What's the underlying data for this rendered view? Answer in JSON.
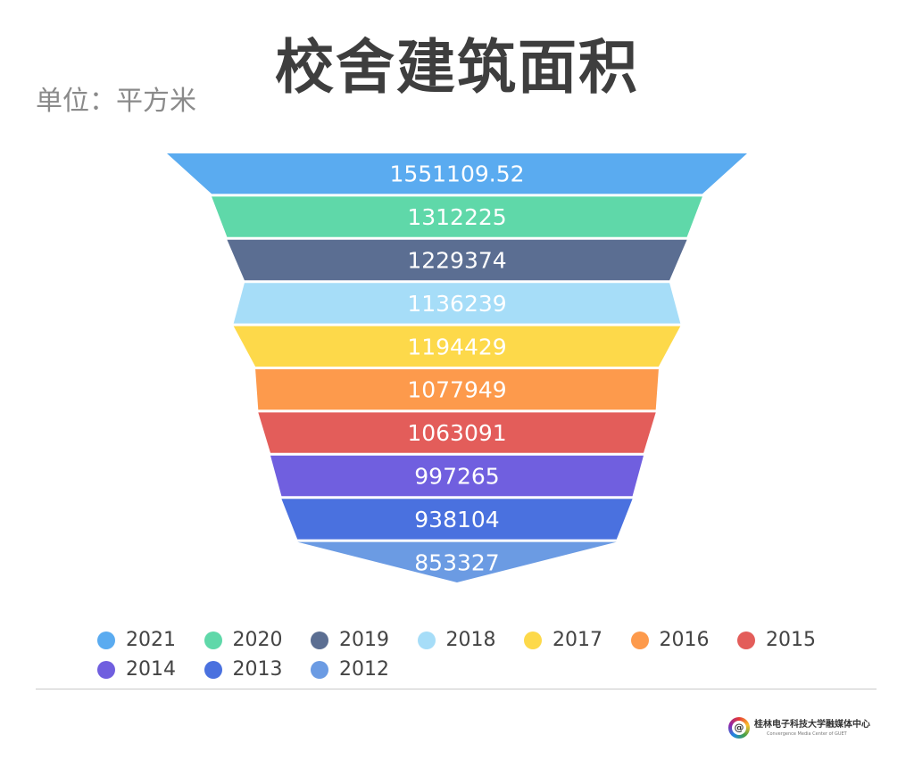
{
  "header": {
    "title": "校舍建筑面积",
    "unit": "单位：平方米"
  },
  "chart_data": {
    "type": "funnel",
    "title": "校舍建筑面积",
    "unit": "单位：平方米",
    "categories": [
      "2021",
      "2020",
      "2019",
      "2018",
      "2017",
      "2016",
      "2015",
      "2014",
      "2013",
      "2012"
    ],
    "values": [
      1551109.52,
      1312225,
      1229374,
      1136239,
      1194429,
      1077949,
      1063091,
      997265,
      938104,
      853327
    ],
    "labels": [
      "1551109.52",
      "1312225",
      "1229374",
      "1136239",
      "1194429",
      "1077949",
      "1063091",
      "997265",
      "938104",
      "853327"
    ],
    "colors": [
      "#5aabf0",
      "#5fd8a9",
      "#5b6e92",
      "#a6ddf8",
      "#fdd94a",
      "#fd9a4c",
      "#e35d5a",
      "#705fdf",
      "#4a71df",
      "#6b9be3"
    ],
    "legend_position": "bottom"
  },
  "footer": {
    "logo_glyph": "@",
    "brand_name": "桂林电子科技大学融媒体中心",
    "brand_sub": "Convergence Media Center of GUET"
  }
}
